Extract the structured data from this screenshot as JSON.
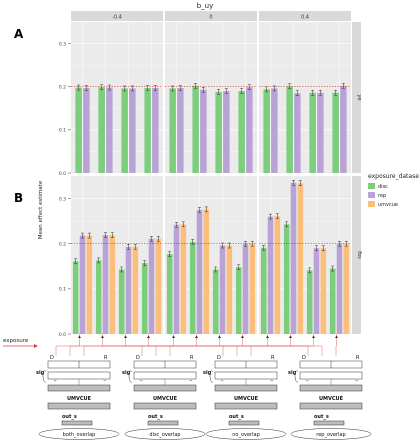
{
  "chart_data": {
    "type": "bar",
    "facet_col_title": "b_uy",
    "facet_cols": [
      "-0.4",
      "0",
      "0.4"
    ],
    "facet_rows": [
      "ye",
      "fbs"
    ],
    "ylabel": "Mean effect estimate",
    "ylim": [
      0,
      0.35
    ],
    "yticks": [
      0.0,
      0.1,
      0.2,
      0.3
    ],
    "reference_line": 0.2,
    "legend": {
      "title": "exposure_dataset",
      "placement": "right"
    },
    "series": [
      {
        "name": "disc",
        "color": "#7ccd7c"
      },
      {
        "name": "rep",
        "color": "#b9a3d6"
      },
      {
        "name": "umvcue",
        "color": "#fcbf7b"
      }
    ],
    "panels": [
      {
        "row": "ye",
        "col": "-0.4",
        "groups": [
          {
            "disc": 0.198,
            "rep": 0.197
          },
          {
            "disc": 0.199,
            "rep": 0.198
          },
          {
            "disc": 0.196,
            "rep": 0.196
          },
          {
            "disc": 0.197,
            "rep": 0.197
          }
        ]
      },
      {
        "row": "ye",
        "col": "0",
        "groups": [
          {
            "disc": 0.196,
            "rep": 0.197
          },
          {
            "disc": 0.202,
            "rep": 0.193
          },
          {
            "disc": 0.188,
            "rep": 0.19
          },
          {
            "disc": 0.19,
            "rep": 0.199
          }
        ]
      },
      {
        "row": "ye",
        "col": "0.4",
        "groups": [
          {
            "disc": 0.194,
            "rep": 0.196
          },
          {
            "disc": 0.201,
            "rep": 0.185
          },
          {
            "disc": 0.186,
            "rep": 0.186
          },
          {
            "disc": 0.186,
            "rep": 0.202
          }
        ]
      },
      {
        "row": "fbs",
        "col": "-0.4",
        "groups": [
          {
            "disc": 0.161,
            "rep": 0.218,
            "umvcue": 0.218
          },
          {
            "disc": 0.163,
            "rep": 0.219,
            "umvcue": 0.219
          },
          {
            "disc": 0.143,
            "rep": 0.193,
            "umvcue": 0.193
          },
          {
            "disc": 0.157,
            "rep": 0.211,
            "umvcue": 0.211
          }
        ]
      },
      {
        "row": "fbs",
        "col": "0",
        "groups": [
          {
            "disc": 0.177,
            "rep": 0.242,
            "umvcue": 0.243
          },
          {
            "disc": 0.204,
            "rep": 0.275,
            "umvcue": 0.276
          },
          {
            "disc": 0.143,
            "rep": 0.196,
            "umvcue": 0.196
          },
          {
            "disc": 0.148,
            "rep": 0.2,
            "umvcue": 0.2
          }
        ]
      },
      {
        "row": "fbs",
        "col": "0.4",
        "groups": [
          {
            "disc": 0.191,
            "rep": 0.26,
            "umvcue": 0.261
          },
          {
            "disc": 0.243,
            "rep": 0.335,
            "umvcue": 0.334
          },
          {
            "disc": 0.141,
            "rep": 0.19,
            "umvcue": 0.19
          },
          {
            "disc": 0.145,
            "rep": 0.2,
            "umvcue": 0.2
          }
        ]
      }
    ]
  },
  "panel_labels": {
    "a": "A",
    "b": "B"
  },
  "diagram": {
    "exposure_label": "exposure",
    "box_labels": {
      "d": "D",
      "r": "R",
      "ds": "D_s",
      "rs": "R_s",
      "sig": "sig",
      "umvcue": "UMVCUE",
      "out": "out_s"
    },
    "scenarios": [
      "both_overlap",
      "disc_overlap",
      "no_overlap",
      "rep_overlap"
    ]
  }
}
